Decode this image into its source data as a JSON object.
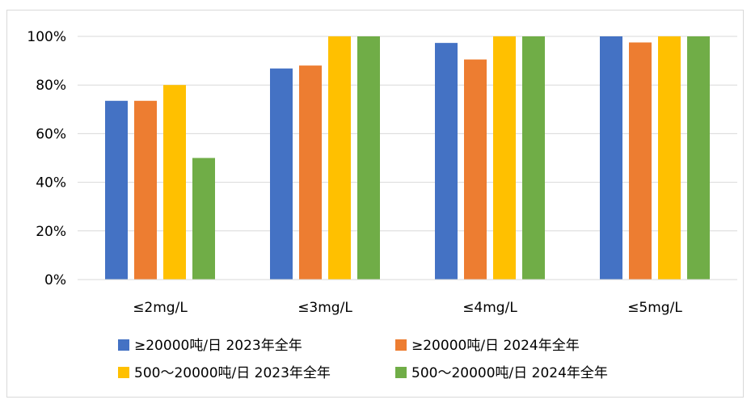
{
  "chart_data": {
    "type": "bar",
    "title": "",
    "xlabel": "",
    "ylabel": "",
    "categories": [
      "≤2mg/L",
      "≤3mg/L",
      "≤4mg/L",
      "≤5mg/L"
    ],
    "series": [
      {
        "name": "≥20000吨/日 2023年全年",
        "color": "#4472C4",
        "values": [
          73.5,
          86.8,
          97.3,
          100
        ]
      },
      {
        "name": "≥20000吨/日 2024年全年",
        "color": "#ED7D31",
        "values": [
          73.5,
          88.0,
          90.5,
          97.5
        ]
      },
      {
        "name": "500～20000吨/日 2023年全年",
        "color": "#FFC000",
        "values": [
          80.0,
          100,
          100,
          100
        ]
      },
      {
        "name": "500～20000吨/日 2024年全年",
        "color": "#70AD47",
        "values": [
          50.0,
          100,
          100,
          100
        ]
      }
    ],
    "ylim": [
      0,
      100
    ],
    "yticks": [
      0,
      20,
      40,
      60,
      80,
      100
    ],
    "ytick_labels": [
      "0%",
      "20%",
      "40%",
      "60%",
      "80%",
      "100%"
    ],
    "grid": true,
    "legend_position": "bottom"
  }
}
